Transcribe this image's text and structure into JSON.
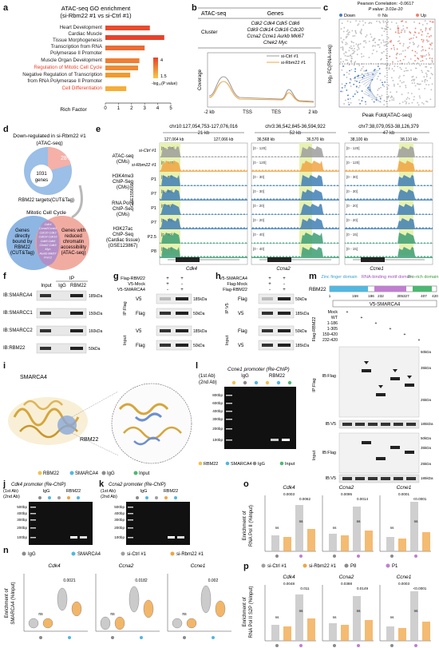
{
  "panels": {
    "a": {
      "label": "a",
      "title1": "ATAC-seq GO enrichment",
      "title2": "(si-Rbm22 #1 vs si-Ctrl #1)",
      "xlabel": "Rich Factor",
      "legend_title": "-log₁₀(P value)",
      "legend_ticks": [
        "4",
        "1.5"
      ],
      "terms": [
        "Heart Development",
        "Cardiac Muscle",
        "Tissue Morphogenesis",
        "Transcription from RNA",
        "Polymerase II Promoter",
        "Muscle Organ Development",
        "Regulation of Mitotic Cell Cycle",
        "Negative Regulation of Transcription",
        "from RNA Polymerase II Promoter",
        "Cell Differentiation"
      ],
      "xticks": [
        "0",
        "1",
        "2",
        "3",
        "4",
        "5"
      ]
    },
    "b": {
      "label": "b",
      "col1": "ATAC-seq",
      "col2": "Genes",
      "row_label": "Cluster",
      "genes": [
        "Cdk2 Cdk4 Cdk5 Cdk6",
        "Cdk9 Cdk14 Cdk16 Cdc20",
        "Ccna2 Ccne1 Aurkb Mki67",
        "Chek2 Myc"
      ],
      "legend": [
        "si-Ctrl #1",
        "si-Rbm22 #1"
      ],
      "ylabel": "Coverage",
      "xticks": [
        "-2 kb",
        "TSS",
        "TES",
        "2 kb"
      ]
    },
    "c": {
      "label": "c",
      "title1": "Pearson Correlation: -0.0617",
      "title2": "P value: 3.01e-10",
      "legend": [
        "Down",
        "Ns",
        "Up"
      ],
      "xlabel": "Peak Fold(ATAC-seq)",
      "ylabel": "log₂ FC(RNA-seq)"
    },
    "d": {
      "label": "d",
      "title1": "Down-regulated in si-Rbm22 #1",
      "title2": "(ATAC-seq)",
      "pct": "28%",
      "center1": "1031",
      "center2": "genes",
      "sub": "RBM22 targets(CUT&Tag)",
      "mitotic": "Mitotic Cell Cycle",
      "left_text": [
        "Genes",
        "directly",
        "bound by",
        "RBM22",
        "(CUT&Tag)"
      ],
      "right_text": [
        "Genes with",
        "reduced",
        "chromatin",
        "accessibility",
        "(ATAC-seq)"
      ],
      "center_genes": [
        "Cdk4",
        "Ccna2Ccne1",
        "Cdc20 Cdk2",
        "Cdk14 Cdk16",
        "Cdk5 Cdk6",
        "Chek2 Cdk9",
        "Myc",
        "Aurkb Mki67",
        "Pnrc2"
      ]
    },
    "e": {
      "label": "e",
      "loci": [
        "chr10:127,054,753-127,076,016",
        "chr3:36,542,845-36,594,922",
        "chr7:38,079,053-38,126,379"
      ],
      "scales": [
        "21 kb",
        "52 kb",
        "47 kb"
      ],
      "coords": [
        [
          "127,064 kb",
          "127,066 kb"
        ],
        [
          "36,568 kb",
          "36,570 kb"
        ],
        [
          "38,100 kb",
          "38,110 kb"
        ]
      ],
      "genes": [
        "Cdk4",
        "Ccna2",
        "Ccne1"
      ],
      "track_labels": [
        "ATAC-seq",
        "(CMs)",
        "H3K4me3",
        "ChIP-Seq",
        "(CMs)",
        "RNA Pol II",
        "ChIP-Seq",
        "(CMs)",
        "H3K27ac",
        "ChIP-Seq",
        "(Cardiac tissue)",
        "(GSE123867)"
      ],
      "sample_labels": [
        "si-Ctrl #1",
        "si-Rbm22 #1",
        "P1",
        "P7",
        "P1",
        "P7",
        "P2.5",
        "P8"
      ],
      "gse": "GSE155658",
      "ranges": [
        [
          "[0 - 120]",
          "[0 - 120]",
          "[0 - 80]",
          "[0 - 80]",
          "[0 - 50]",
          "[0 - 50]",
          "[0 - 40]",
          "[0 - 40]"
        ],
        [
          "[0 - 120]",
          "[0 - 120]",
          "[0 - 30]",
          "[0 - 30]",
          "[0 - 20]",
          "[0 - 20]",
          "[0 - 40]",
          "[0 - 40]"
        ],
        [
          "[0 - 120]",
          "[0 - 120]",
          "[0 - 30]",
          "[0 - 30]",
          "[0 - 20]",
          "[0 - 20]",
          "[0 - 15]",
          "[0 - 15]"
        ]
      ]
    },
    "f": {
      "label": "f",
      "cols": [
        "Input",
        "IgG",
        "RBM22"
      ],
      "ip": "IP",
      "rows": [
        "IB:SMARCA4",
        "IB:SMARCC1",
        "IB:SMARCC2",
        "IB:RBM22"
      ],
      "sizes": [
        "185kDa",
        "150kDa",
        "160kDa",
        "50kDa"
      ]
    },
    "g": {
      "label": "g",
      "rows_top": [
        "Flag-RBM22",
        "V5-Mock",
        "V5-SMARCA4"
      ],
      "signs": [
        [
          "+",
          "+"
        ],
        [
          "+",
          "-"
        ],
        [
          "-",
          "+"
        ]
      ],
      "blot_labels": [
        "V5",
        "Flag",
        "V5",
        "Flag"
      ],
      "sizes": [
        "185kDa",
        "50kDa",
        "185kDa",
        "50kDa"
      ],
      "side": [
        "IP:Flag",
        "Input"
      ]
    },
    "h": {
      "label": "h",
      "rows_top": [
        "V5-SMARCA4",
        "Flag-Mock",
        "Flag-RBM22"
      ],
      "signs": [
        [
          "+",
          "+"
        ],
        [
          "+",
          "-"
        ],
        [
          "-",
          "+"
        ]
      ],
      "blot_labels": [
        "Flag",
        "V5",
        "Flag",
        "V5"
      ],
      "sizes": [
        "50kDa",
        "185kDa",
        "50kDa",
        "185kDa"
      ],
      "side": [
        "IP:V5",
        "Input"
      ]
    },
    "i": {
      "label": "i",
      "smarca4": "SMARCA4",
      "rbm22": "RBM22",
      "legend": [
        "RBM22",
        "SMARCA4",
        "IgG",
        "Input"
      ]
    },
    "j": {
      "label": "j",
      "title": "Cdk4 promoter (Re-ChIP)",
      "first": "(1st Ab)",
      "second": "(2nd Ab)",
      "igg": "IgG",
      "rbm22": "RBM22",
      "ladder": [
        "500bp",
        "400bp",
        "300bp",
        "200bp",
        "100bp"
      ]
    },
    "k": {
      "label": "k",
      "title": "Ccna2 promoter (Re-ChIP)",
      "first": "(1st Ab)",
      "second": "(2nd Ab)",
      "igg": "IgG",
      "rbm22": "RBM22",
      "ladder": [
        "500bp",
        "400bp",
        "300bp",
        "200bp",
        "100bp"
      ]
    },
    "jk_legend": [
      "IgG",
      "SMARCA4",
      "si-Ctrl #1",
      "si-Rbm22 #1"
    ],
    "l": {
      "label": "l",
      "title": "Ccne1 promoter (Re-ChIP)",
      "first": "(1st Ab)",
      "second": "(2nd Ab)",
      "igg": "IgG",
      "rbm22": "RBM22",
      "ladder": [
        "800bp",
        "600bp",
        "400bp",
        "300bp",
        "200bp",
        "100bp"
      ]
    },
    "m": {
      "label": "m",
      "protein": "RBM22",
      "domains": [
        "Zinc finger domain",
        "RNA-binding motif domain",
        "Pro-rich domain"
      ],
      "positions": [
        "1",
        "159",
        "186",
        "232",
        "305327",
        "407",
        "420"
      ],
      "v5": "V5-SMARCA4",
      "constructs": [
        "Mock",
        "WT",
        "1-186",
        "1-305",
        "159-420",
        "232-420"
      ],
      "flag": "Flag-RBM22",
      "blots": [
        "IB:Flag",
        "IB:V5",
        "IB:Flag",
        "IB:V5"
      ],
      "sides": [
        "IP:Flag",
        "Input"
      ],
      "sizes_ip": [
        "50kDa",
        "35kDa",
        "25kDa",
        "185kDa"
      ],
      "sizes_in": [
        "50kDa",
        "35kDa",
        "25kDa",
        "185kDa"
      ]
    },
    "n": {
      "label": "n",
      "ylabel1": "Enrichment of",
      "ylabel2": "SMARCA4 (%Input)",
      "genes": [
        "Cdk4",
        "Ccna2",
        "Ccne1"
      ],
      "stats": [
        [
          "ns",
          "0.0021"
        ],
        [
          "ns",
          "0.0182"
        ],
        [
          "ns",
          "0.002"
        ]
      ]
    },
    "o": {
      "label": "o",
      "ylabel1": "Enrichment of",
      "ylabel2": "RNA Pol II (%Input)",
      "genes": [
        "Cdk4",
        "Ccna2",
        "Ccne1"
      ],
      "stats": [
        [
          "0.0003",
          "0.0062",
          "ns",
          "ns"
        ],
        [
          "0.0095",
          "0.0014",
          "ns",
          "ns"
        ],
        [
          "0.0001",
          "<0.0001",
          "ns",
          "ns"
        ]
      ]
    },
    "p": {
      "label": "p",
      "ylabel1": "Enrichment of",
      "ylabel2": "RNA Pol II S2P (%Input)",
      "genes": [
        "Cdk4",
        "Ccna2",
        "Ccne1"
      ],
      "stats": [
        [
          "0.0048",
          "0.011",
          "ns",
          "ns"
        ],
        [
          "0.0388",
          "0.0149",
          "ns",
          "ns"
        ],
        [
          "0.0003",
          "<0.0001",
          "ns",
          "ns"
        ]
      ],
      "legend": [
        "si-Ctrl #1",
        "si-Rbm22 #1",
        "P8",
        "P1"
      ]
    }
  },
  "colors": {
    "bar_red": "#e8412a",
    "bar_orange": "#f29a2e",
    "ctrl_grey": "#9e9e9e",
    "rbm_orange": "#f0a444",
    "up_red": "#f08070",
    "down_blue": "#4a7fc1",
    "smarca4_blue": "#52b7e0",
    "rbm22_yellow": "#f2c14e",
    "igg_grey": "#8a8a8a",
    "input_green": "#4cb872",
    "p1_purple": "#c07fd0",
    "track_blue": "#3f7fb5",
    "track_green": "#3d9d74",
    "highlight": "#e8f2b0"
  },
  "chart_data": {
    "type": "bar",
    "categories": [
      "Heart Development",
      "Cardiac Muscle Tissue Morphogenesis",
      "Transcription from RNA Polymerase II Promoter",
      "Muscle Organ Development",
      "Regulation of Mitotic Cell Cycle",
      "Negative Regulation of Transcription from RNA Polymerase II Promoter",
      "Cell Differentiation"
    ],
    "values": [
      3.4,
      4.5,
      3.0,
      2.6,
      2.5,
      1.9,
      1.6
    ],
    "xlabel": "Rich Factor",
    "xlim": [
      0,
      5
    ]
  }
}
